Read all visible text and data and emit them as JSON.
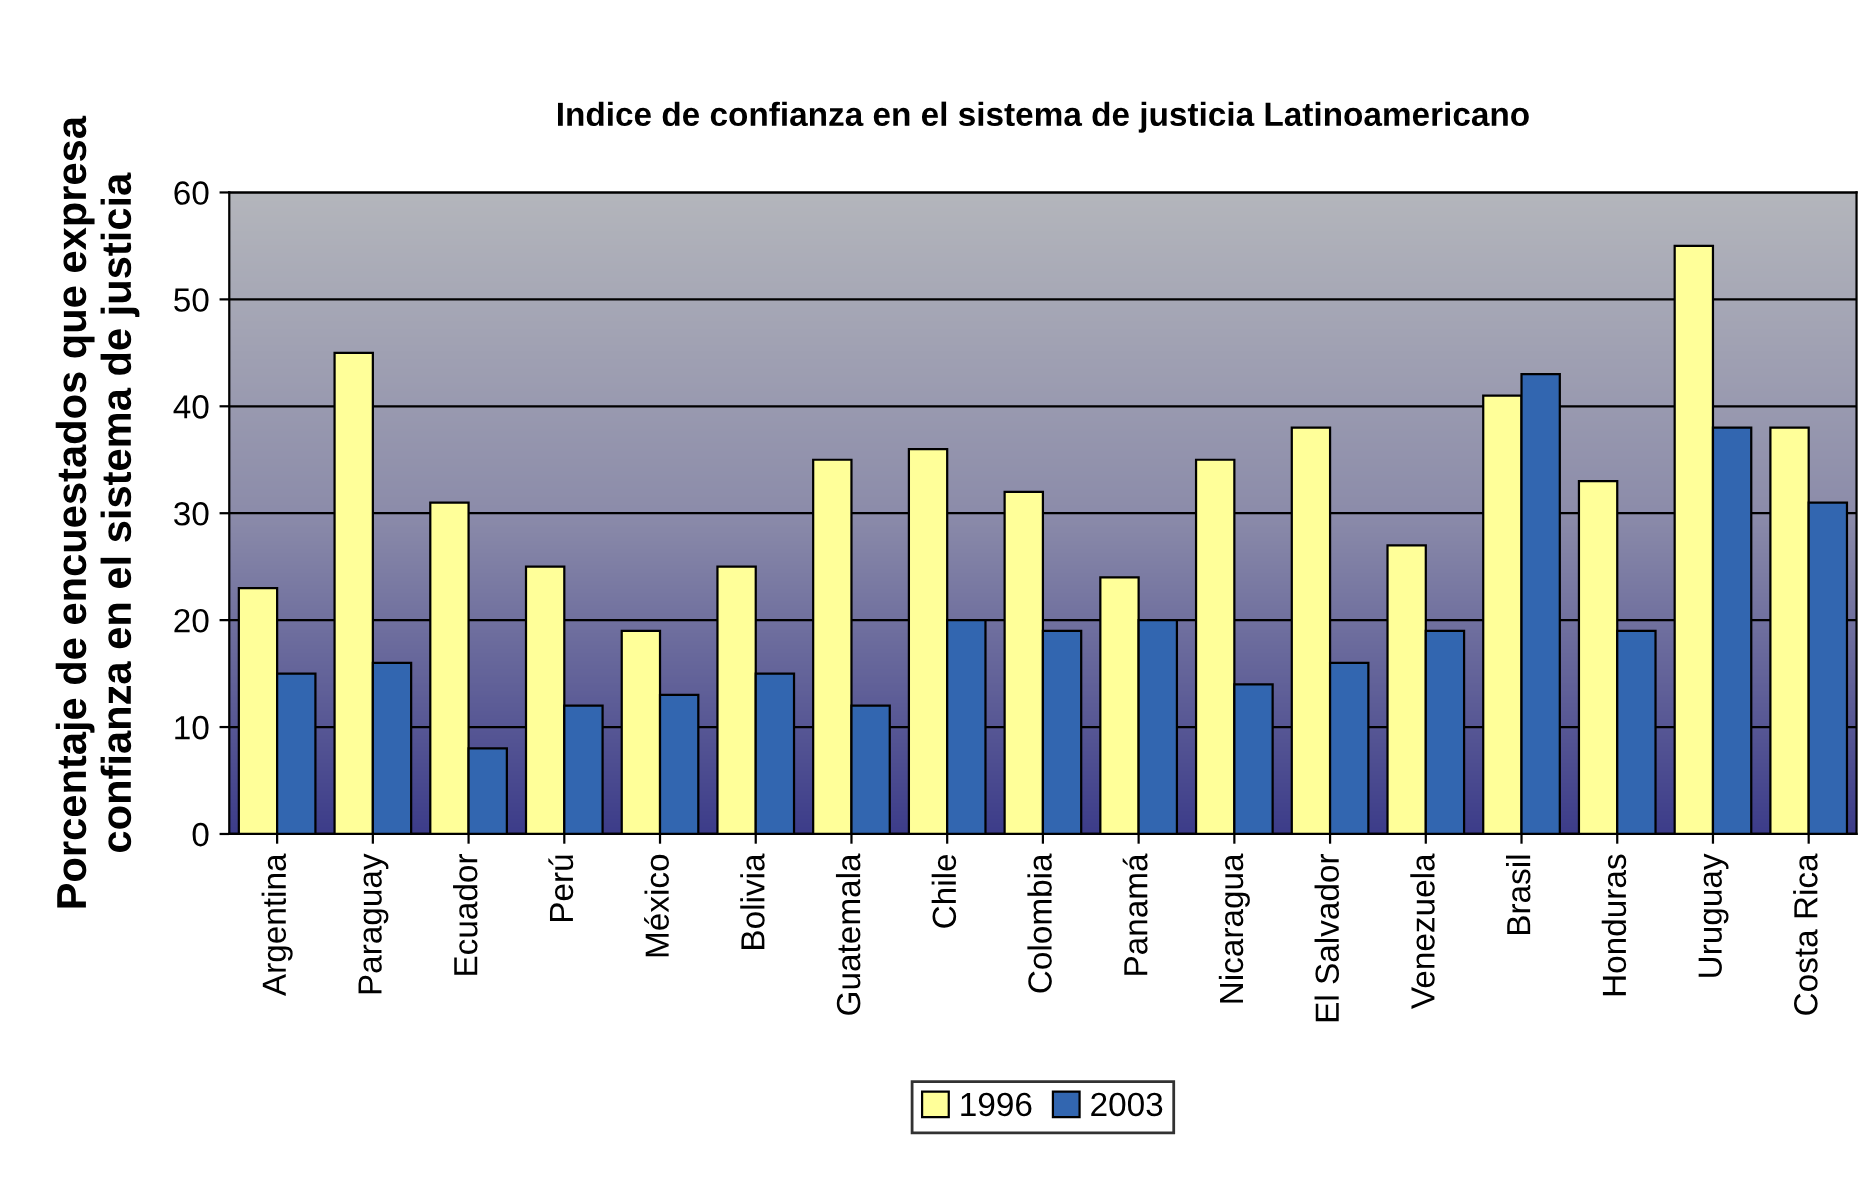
{
  "chart_data": {
    "type": "bar",
    "title": "Indice de confianza en el sistema de justicia Latinoamericano",
    "ylabel": "Porcentaje de encuestados que expresa\nconfianza en el sistema de justicia",
    "categories": [
      "Argentina",
      "Paraguay",
      "Ecuador",
      "Perú",
      "México",
      "Bolivia",
      "Guatemala",
      "Chile",
      "Colombia",
      "Panamá",
      "Nicaragua",
      "El Salvador",
      "Venezuela",
      "Brasil",
      "Honduras",
      "Uruguay",
      "Costa Rica"
    ],
    "series": [
      {
        "name": "1996",
        "color": "#ffff99",
        "values": [
          23,
          45,
          31,
          25,
          19,
          25,
          35,
          36,
          32,
          24,
          35,
          38,
          27,
          41,
          33,
          55,
          38
        ]
      },
      {
        "name": "2003",
        "color": "#3266b0",
        "values": [
          15,
          16,
          8,
          12,
          13,
          15,
          12,
          20,
          19,
          20,
          14,
          16,
          19,
          43,
          19,
          38,
          31
        ]
      }
    ],
    "ylim": [
      0,
      60
    ],
    "yticks": [
      0,
      10,
      20,
      30,
      40,
      50,
      60
    ],
    "grid": "y",
    "legend": "bottom"
  }
}
